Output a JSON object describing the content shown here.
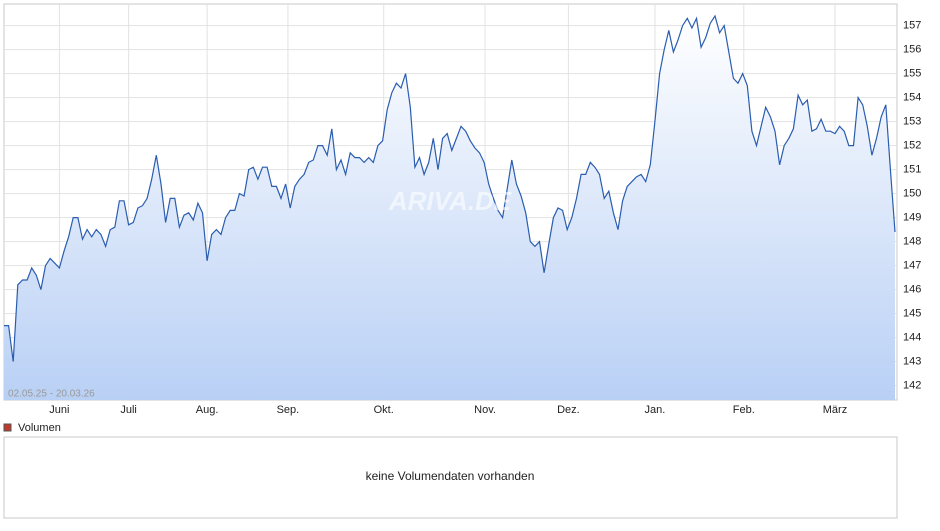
{
  "chart_data": {
    "type": "line",
    "date_range": "02.05.25 - 20.03.26",
    "watermark": "ARIVA.DE",
    "color": "#2a5db0",
    "grid": true,
    "ylim": [
      141.4,
      157.9
    ],
    "yticks": [
      142,
      143,
      144,
      145,
      146,
      147,
      148,
      149,
      150,
      151,
      152,
      153,
      154,
      155,
      156,
      157
    ],
    "xlim": [
      0,
      193
    ],
    "xticks": [
      {
        "value": 12,
        "label": "Juni"
      },
      {
        "value": 27,
        "label": "Juli"
      },
      {
        "value": 44,
        "label": "Aug."
      },
      {
        "value": 61.5,
        "label": "Sep."
      },
      {
        "value": 82.25,
        "label": "Okt."
      },
      {
        "value": 104.2,
        "label": "Nov."
      },
      {
        "value": 122.25,
        "label": "Dez."
      },
      {
        "value": 141,
        "label": "Jan."
      },
      {
        "value": 160.25,
        "label": "Feb."
      },
      {
        "value": 180,
        "label": "März"
      }
    ],
    "values": [
      144.5,
      144.5,
      143.0,
      146.2,
      146.4,
      146.4,
      146.9,
      146.6,
      146.0,
      147.0,
      147.3,
      147.1,
      146.9,
      147.6,
      148.2,
      149.0,
      149.0,
      148.1,
      148.5,
      148.2,
      148.5,
      148.3,
      147.8,
      148.5,
      148.6,
      149.7,
      149.7,
      148.7,
      148.8,
      149.4,
      149.5,
      149.8,
      150.6,
      151.6,
      150.4,
      148.8,
      149.8,
      149.8,
      148.6,
      149.1,
      149.2,
      148.9,
      149.6,
      149.2,
      147.2,
      148.3,
      148.5,
      148.3,
      149.0,
      149.3,
      149.3,
      150.0,
      149.9,
      151.0,
      151.1,
      150.6,
      151.1,
      151.1,
      150.3,
      150.3,
      149.8,
      150.4,
      149.4,
      150.3,
      150.6,
      150.8,
      151.3,
      151.4,
      152.0,
      152.0,
      151.6,
      152.7,
      151.0,
      151.4,
      150.8,
      151.7,
      151.5,
      151.5,
      151.3,
      151.5,
      151.3,
      152.0,
      152.2,
      153.5,
      154.2,
      154.6,
      154.4,
      155.0,
      153.6,
      151.1,
      151.5,
      150.8,
      151.3,
      152.3,
      151.0,
      152.3,
      152.5,
      151.8,
      152.3,
      152.8,
      152.6,
      152.2,
      151.9,
      151.7,
      151.3,
      150.4,
      149.8,
      149.3,
      149.0,
      150.2,
      151.4,
      150.4,
      149.9,
      149.2,
      148.0,
      147.8,
      148.0,
      146.7,
      147.9,
      149.0,
      149.4,
      149.3,
      148.5,
      149.0,
      149.8,
      150.8,
      150.8,
      151.3,
      151.1,
      150.8,
      149.8,
      150.1,
      149.2,
      148.5,
      149.7,
      150.3,
      150.5,
      150.7,
      150.8,
      150.5,
      151.2,
      153.0,
      155.0,
      156.0,
      156.8,
      155.9,
      156.4,
      157.0,
      157.3,
      156.9,
      157.3,
      156.1,
      156.5,
      157.1,
      157.4,
      156.7,
      157.0,
      155.9,
      154.8,
      154.6,
      155.0,
      154.5,
      152.6,
      152.0,
      152.8,
      153.6,
      153.2,
      152.6,
      151.2,
      152.0,
      152.3,
      152.7,
      154.1,
      153.7,
      153.9,
      152.6,
      152.7,
      153.1,
      152.6,
      152.6,
      152.5,
      152.8,
      152.6,
      152.0,
      152.0,
      154.0,
      153.7,
      152.8,
      151.6,
      152.3,
      153.2,
      153.7,
      151.0,
      148.4
    ]
  },
  "volume_panel": {
    "legend": "Volumen",
    "message": "keine Volumendaten vorhanden"
  }
}
